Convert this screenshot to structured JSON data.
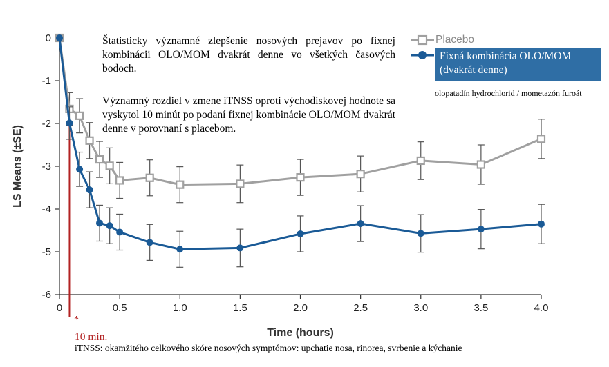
{
  "chart_data": {
    "type": "line",
    "xlabel": "Time (hours)",
    "ylabel": "LS Means (±SE)",
    "xlim": [
      0,
      4.0
    ],
    "ylim": [
      -6,
      0
    ],
    "x_ticks": [
      "0",
      "0.5",
      "1.0",
      "1.5",
      "2.0",
      "2.5",
      "3.0",
      "3.5",
      "4.0"
    ],
    "x_tick_values": [
      0,
      0.5,
      1.0,
      1.5,
      2.0,
      2.5,
      3.0,
      3.5,
      4.0
    ],
    "y_ticks": [
      "0",
      "-1",
      "-2",
      "-3",
      "-4",
      "-5",
      "-6"
    ],
    "y_tick_values": [
      0,
      -1,
      -2,
      -3,
      -4,
      -5,
      -6
    ],
    "grid": false,
    "legend_position": "top-right",
    "series": [
      {
        "name": "Placebo",
        "color": "#a0a0a0",
        "marker": "open-square",
        "x": [
          0,
          0.083,
          0.167,
          0.25,
          0.333,
          0.417,
          0.5,
          0.75,
          1.0,
          1.5,
          2.0,
          2.5,
          3.0,
          3.5,
          4.0
        ],
        "y": [
          0,
          -1.66,
          -1.82,
          -2.4,
          -2.84,
          -2.99,
          -3.33,
          -3.27,
          -3.43,
          -3.41,
          -3.26,
          -3.18,
          -2.87,
          -2.96,
          -2.36
        ],
        "se": [
          0,
          0.38,
          0.4,
          0.42,
          0.42,
          0.42,
          0.42,
          0.42,
          0.42,
          0.44,
          0.42,
          0.42,
          0.44,
          0.46,
          0.46
        ]
      },
      {
        "name": "Fixná kombinácia OLO/MOM (dvakrát denne)",
        "color": "#1a5a96",
        "marker": "filled-circle",
        "x": [
          0,
          0.083,
          0.167,
          0.25,
          0.333,
          0.417,
          0.5,
          0.75,
          1.0,
          1.5,
          2.0,
          2.5,
          3.0,
          3.5,
          4.0
        ],
        "y": [
          0,
          -1.99,
          -3.07,
          -3.55,
          -4.33,
          -4.39,
          -4.54,
          -4.78,
          -4.94,
          -4.91,
          -4.58,
          -4.34,
          -4.57,
          -4.47,
          -4.35
        ],
        "se": [
          0,
          0.38,
          0.4,
          0.42,
          0.42,
          0.42,
          0.42,
          0.42,
          0.42,
          0.44,
          0.42,
          0.42,
          0.44,
          0.46,
          0.46
        ]
      }
    ],
    "marker_line": {
      "x": 0.083,
      "label": "10 min.",
      "star": "*",
      "color": "#b22222"
    }
  },
  "annotations": {
    "text1": "Štatisticky významné zlepšenie nosových prejavov po fixnej kombinácii OLO/MOM dvakrát denne vo všetkých časových bodoch.",
    "text2": "Významný rozdiel v zmene iTNSS oproti východiskovej hodnote sa vyskytol 10 minút po podaní fixnej kombinácie OLO/MOM dvakrát denne v porovnaní s placebom."
  },
  "legend": {
    "placebo": "Placebo",
    "active_line1": "Fixná kombinácia OLO/MOM",
    "active_line2": "(dvakrát denne)",
    "note": "olopatadín hydrochlorid / mometazón furoát"
  },
  "footnote": "iTNSS: okamžitého celkového skóre nosových symptómov: upchatie nosa, rinorea, svrbenie a kýchanie"
}
